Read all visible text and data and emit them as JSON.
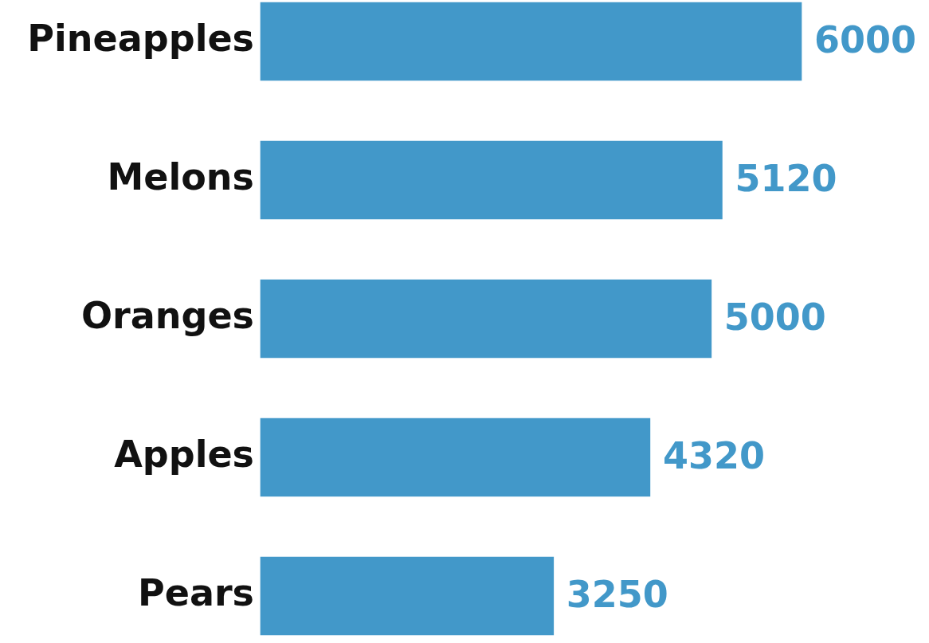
{
  "chart_data": {
    "type": "bar",
    "orientation": "horizontal",
    "categories": [
      "Pineapples",
      "Melons",
      "Oranges",
      "Apples",
      "Pears"
    ],
    "values": [
      6000,
      5120,
      5000,
      4320,
      3250
    ],
    "color": "#4298c9",
    "data_labels": true,
    "grid": false,
    "legend": false
  }
}
